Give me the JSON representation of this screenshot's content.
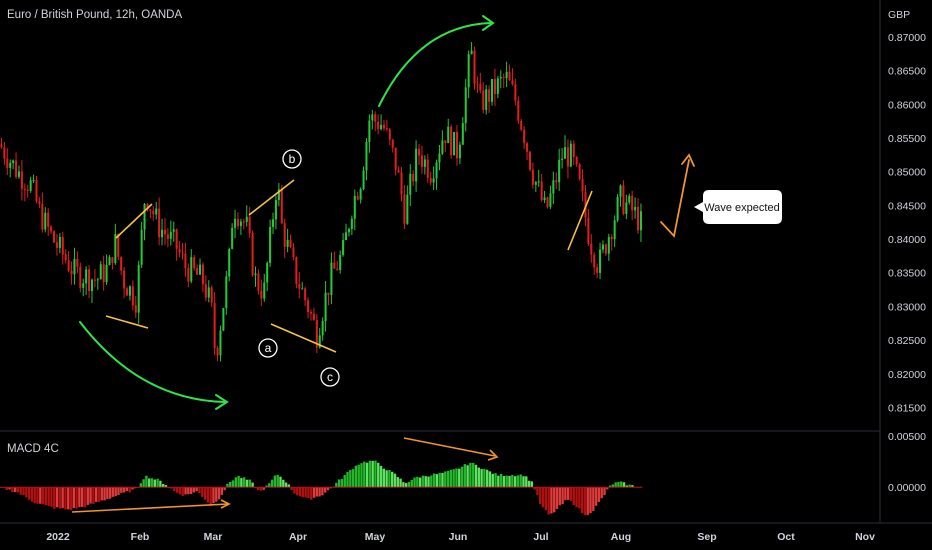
{
  "header": {
    "title": "Euro / British Pound, 12h, OANDA",
    "currency": "GBP"
  },
  "indicator": {
    "name": "MACD 4C",
    "ticks": [
      "0.00500",
      "0.00000"
    ],
    "range": [
      -0.0035,
      0.0055
    ]
  },
  "annotations": {
    "callout": "Wave expected",
    "wave_labels": [
      "a",
      "b",
      "c"
    ]
  },
  "colors": {
    "bull": "#22c93a",
    "bear": "#e11d1d",
    "macd_bull": "#21b82a",
    "macd_bull_light": "#5ce35e",
    "macd_bear": "#b01010",
    "macd_bear_light": "#e23a3a",
    "arrow_green": "#2fe34a",
    "line_yellow": "#f6c343",
    "arrow_orange": "#f0962a"
  },
  "chart_data": {
    "type": "candlestick",
    "title": "Euro / British Pound, 12h, OANDA",
    "ylabel": "GBP",
    "ylim": [
      0.8115,
      0.8755
    ],
    "yticks": [
      "0.87000",
      "0.86500",
      "0.86000",
      "0.85500",
      "0.85000",
      "0.84500",
      "0.84000",
      "0.83500",
      "0.83000",
      "0.82500",
      "0.82000",
      "0.81500"
    ],
    "xticks": [
      "2022",
      "Feb",
      "Mar",
      "Apr",
      "May",
      "Jun",
      "Jul",
      "Aug",
      "Sep",
      "Oct",
      "Nov"
    ],
    "price_path": [
      [
        0,
        0.854
      ],
      [
        0.02,
        0.85
      ],
      [
        0.035,
        0.848
      ],
      [
        0.045,
        0.844
      ],
      [
        0.06,
        0.84
      ],
      [
        0.085,
        0.835
      ],
      [
        0.11,
        0.834
      ],
      [
        0.125,
        0.836
      ],
      [
        0.13,
        0.84
      ],
      [
        0.14,
        0.834
      ],
      [
        0.155,
        0.831
      ],
      [
        0.165,
        0.847
      ],
      [
        0.18,
        0.842
      ],
      [
        0.2,
        0.839
      ],
      [
        0.21,
        0.836
      ],
      [
        0.23,
        0.834
      ],
      [
        0.24,
        0.83
      ],
      [
        0.245,
        0.8225
      ],
      [
        0.26,
        0.836
      ],
      [
        0.265,
        0.845
      ],
      [
        0.28,
        0.842
      ],
      [
        0.29,
        0.834
      ],
      [
        0.3,
        0.832
      ],
      [
        0.315,
        0.849
      ],
      [
        0.32,
        0.842
      ],
      [
        0.335,
        0.835
      ],
      [
        0.35,
        0.83
      ],
      [
        0.36,
        0.826
      ],
      [
        0.375,
        0.834
      ],
      [
        0.39,
        0.838
      ],
      [
        0.4,
        0.845
      ],
      [
        0.41,
        0.849
      ],
      [
        0.42,
        0.858
      ],
      [
        0.435,
        0.857
      ],
      [
        0.45,
        0.851
      ],
      [
        0.46,
        0.844
      ],
      [
        0.475,
        0.853
      ],
      [
        0.49,
        0.85
      ],
      [
        0.505,
        0.856
      ],
      [
        0.52,
        0.853
      ],
      [
        0.535,
        0.868
      ],
      [
        0.545,
        0.86
      ],
      [
        0.56,
        0.862
      ],
      [
        0.575,
        0.864
      ],
      [
        0.585,
        0.861
      ],
      [
        0.595,
        0.856
      ],
      [
        0.605,
        0.85
      ],
      [
        0.62,
        0.844
      ],
      [
        0.63,
        0.848
      ],
      [
        0.64,
        0.853
      ],
      [
        0.65,
        0.852
      ],
      [
        0.66,
        0.847
      ],
      [
        0.67,
        0.84
      ],
      [
        0.68,
        0.836
      ],
      [
        0.695,
        0.842
      ],
      [
        0.705,
        0.846
      ],
      [
        0.72,
        0.844
      ],
      [
        0.73,
        0.842
      ]
    ],
    "wave_points": {
      "a": 0.8273,
      "b": 0.854,
      "c": 0.8223
    },
    "macd_path": [
      [
        0,
        0
      ],
      [
        0.02,
        -0.0005
      ],
      [
        0.04,
        -0.0015
      ],
      [
        0.06,
        -0.002
      ],
      [
        0.08,
        -0.0022
      ],
      [
        0.1,
        -0.0018
      ],
      [
        0.12,
        -0.0012
      ],
      [
        0.14,
        -0.0006
      ],
      [
        0.155,
        -0.0002
      ],
      [
        0.165,
        0.0011
      ],
      [
        0.18,
        0.0007
      ],
      [
        0.19,
        0.0002
      ],
      [
        0.2,
        -0.0005
      ],
      [
        0.21,
        -0.0008
      ],
      [
        0.225,
        -0.0004
      ],
      [
        0.24,
        -0.0018
      ],
      [
        0.25,
        -0.001
      ],
      [
        0.26,
        0.0004
      ],
      [
        0.27,
        0.0011
      ],
      [
        0.285,
        0.0006
      ],
      [
        0.295,
        -0.0005
      ],
      [
        0.305,
        0.0002
      ],
      [
        0.315,
        0.0013
      ],
      [
        0.325,
        0.0006
      ],
      [
        0.335,
        -0.0006
      ],
      [
        0.35,
        -0.0012
      ],
      [
        0.365,
        -0.0008
      ],
      [
        0.375,
        -0.0002
      ],
      [
        0.39,
        0.001
      ],
      [
        0.4,
        0.0018
      ],
      [
        0.41,
        0.0024
      ],
      [
        0.425,
        0.0026
      ],
      [
        0.435,
        0.002
      ],
      [
        0.45,
        0.0012
      ],
      [
        0.46,
        0.0004
      ],
      [
        0.475,
        0.001
      ],
      [
        0.49,
        0.0012
      ],
      [
        0.505,
        0.0014
      ],
      [
        0.52,
        0.0018
      ],
      [
        0.535,
        0.0024
      ],
      [
        0.55,
        0.0018
      ],
      [
        0.565,
        0.0012
      ],
      [
        0.58,
        0.0012
      ],
      [
        0.595,
        0.0012
      ],
      [
        0.605,
        0.0005
      ],
      [
        0.615,
        -0.0018
      ],
      [
        0.625,
        -0.0028
      ],
      [
        0.635,
        -0.002
      ],
      [
        0.645,
        -0.0012
      ],
      [
        0.655,
        -0.0018
      ],
      [
        0.665,
        -0.0028
      ],
      [
        0.675,
        -0.0022
      ],
      [
        0.685,
        -0.001
      ],
      [
        0.695,
        0.0003
      ],
      [
        0.705,
        0.0005
      ],
      [
        0.715,
        0.0002
      ],
      [
        0.73,
        0.0
      ]
    ]
  }
}
